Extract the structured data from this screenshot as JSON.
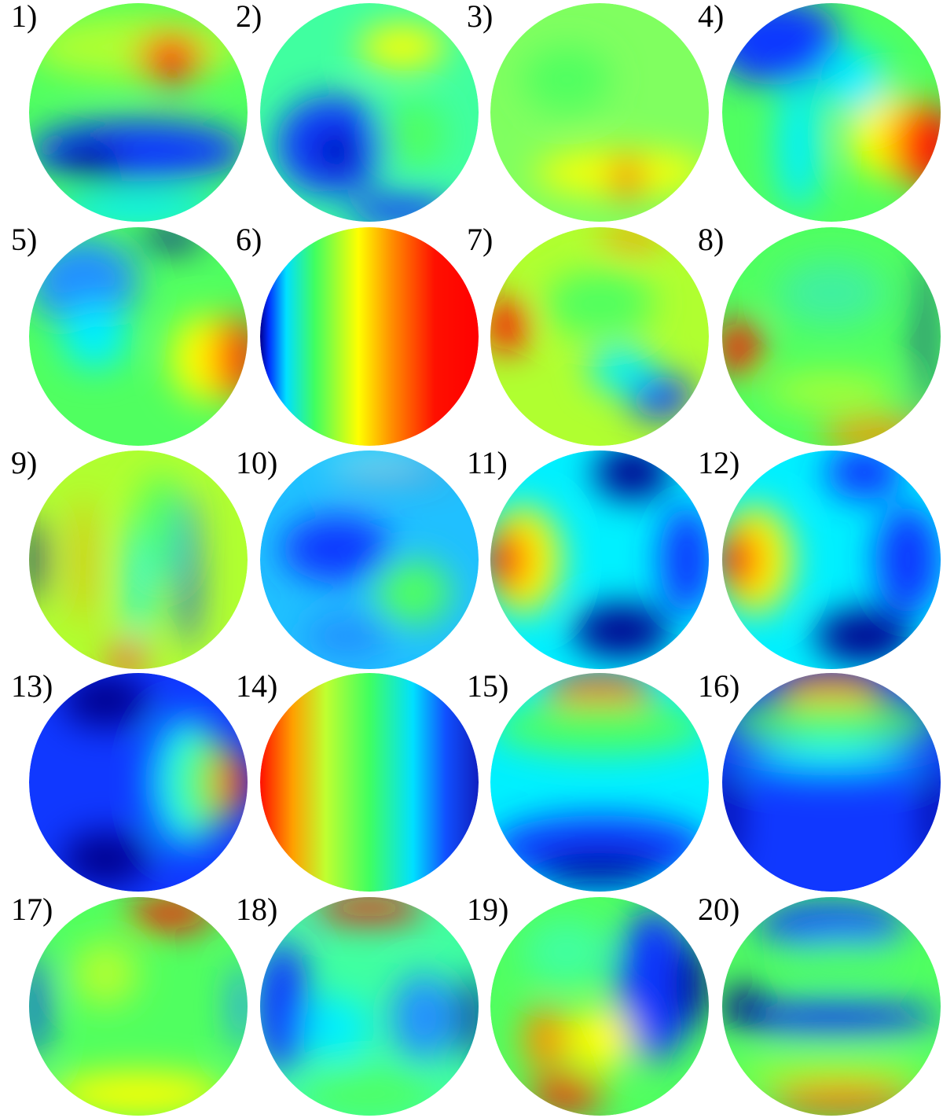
{
  "labels": [
    "1)",
    "2)",
    "3)",
    "4)",
    "5)",
    "6)",
    "7)",
    "8)",
    "9)",
    "10)",
    "11)",
    "12)",
    "13)",
    "14)",
    "15)",
    "16)",
    "17)",
    "18)",
    "19)",
    "20)"
  ]
}
